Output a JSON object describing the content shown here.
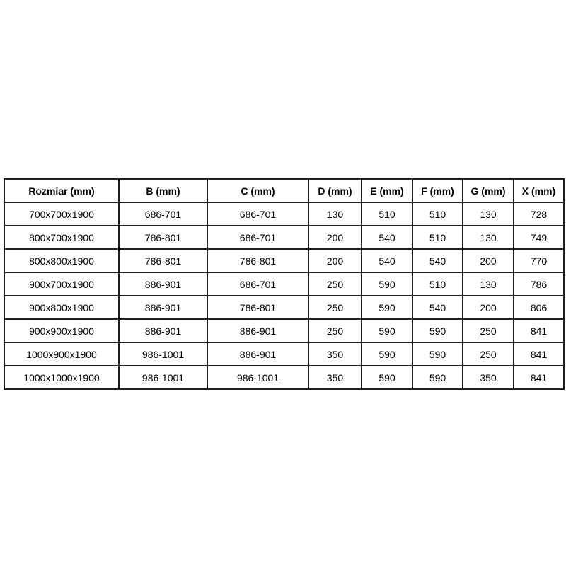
{
  "colors": {
    "border": "#1f1f1f",
    "text": "#000000",
    "background": "#ffffff"
  },
  "table": {
    "columns": [
      "Rozmiar (mm)",
      "B (mm)",
      "C (mm)",
      "D (mm)",
      "E (mm)",
      "F (mm)",
      "G (mm)",
      "X (mm)"
    ],
    "rows": [
      [
        "700x700x1900",
        "686-701",
        "686-701",
        "130",
        "510",
        "510",
        "130",
        "728"
      ],
      [
        "800x700x1900",
        "786-801",
        "686-701",
        "200",
        "540",
        "510",
        "130",
        "749"
      ],
      [
        "800x800x1900",
        "786-801",
        "786-801",
        "200",
        "540",
        "540",
        "200",
        "770"
      ],
      [
        "900x700x1900",
        "886-901",
        "686-701",
        "250",
        "590",
        "510",
        "130",
        "786"
      ],
      [
        "900x800x1900",
        "886-901",
        "786-801",
        "250",
        "590",
        "540",
        "200",
        "806"
      ],
      [
        "900x900x1900",
        "886-901",
        "886-901",
        "250",
        "590",
        "590",
        "250",
        "841"
      ],
      [
        "1000x900x1900",
        "986-1001",
        "886-901",
        "350",
        "590",
        "590",
        "250",
        "841"
      ],
      [
        "1000x1000x1900",
        "986-1001",
        "986-1001",
        "350",
        "590",
        "590",
        "350",
        "841"
      ]
    ]
  }
}
